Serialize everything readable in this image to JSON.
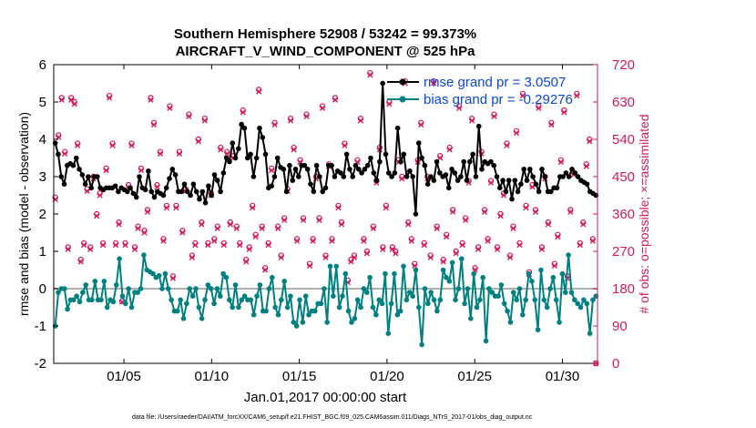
{
  "chart_data": {
    "type": "line",
    "title_line1": "Southern Hemisphere 52908 / 53242 = 99.373%",
    "title_line2": "AIRCRAFT_V_WIND_COMPONENT @ 525 hPa",
    "xlabel": "Jan.01,2017 00:00:00 start",
    "ylabel_left": "rmse and bias (model - observation)",
    "ylabel_right": "# of obs: o=possible; ×=assimilated",
    "footer": "data file: /Users/raeder/DAI/ATM_forcXX/CAM6_setup/f.e21.FHIST_BGC.f09_025.CAM6assim.011/Diags_NTrS_2017-01/obs_diag_output.nc",
    "xlim": [
      1,
      32
    ],
    "ylim_left": [
      -2,
      6
    ],
    "ylim_right": [
      0,
      720
    ],
    "x_ticks": [
      5,
      10,
      15,
      20,
      25,
      30
    ],
    "x_tick_labels": [
      "01/05",
      "01/10",
      "01/15",
      "01/20",
      "01/25",
      "01/30"
    ],
    "y_left_ticks": [
      -2,
      -1,
      0,
      1,
      2,
      3,
      4,
      5,
      6
    ],
    "y_left_tick_labels": [
      "-2",
      "-1",
      "0",
      "1",
      "2",
      "3",
      "4",
      "5",
      "6"
    ],
    "y_right_ticks": [
      0,
      90,
      180,
      270,
      360,
      450,
      540,
      630,
      720
    ],
    "y_right_tick_labels": [
      "0",
      "90",
      "180",
      "270",
      "360",
      "450",
      "540",
      "630",
      "720"
    ],
    "zero_line": 0,
    "legend": [
      {
        "label": "rmse grand pr = 3.0507",
        "color": "#000000"
      },
      {
        "label": "bias grand pr = -0.29276",
        "color": "#008080"
      }
    ],
    "colors": {
      "rmse": "#000000",
      "bias": "#008080",
      "obs": "#d6195e",
      "zero": "#b0b0b0",
      "legend_text": "#0a47d6"
    },
    "series": [
      {
        "name": "rmse",
        "values": [
          3.9,
          3.6,
          3.0,
          2.8,
          3.3,
          3.35,
          3.3,
          3.5,
          3.2,
          3.05,
          2.8,
          3.0,
          2.7,
          3.0,
          3.0,
          2.7,
          2.65,
          2.7,
          2.7,
          2.7,
          2.75,
          2.6,
          2.7,
          2.65,
          2.6,
          2.7,
          2.55,
          2.45,
          3.0,
          2.7,
          2.65,
          3.15,
          2.6,
          2.45,
          2.6,
          2.55,
          2.5,
          2.7,
          2.95,
          3.2,
          3.05,
          2.6,
          2.6,
          2.8,
          2.6,
          2.5,
          2.8,
          2.6,
          2.4,
          2.6,
          2.3,
          2.75,
          2.5,
          3.05,
          2.9,
          2.6,
          3.1,
          3.5,
          3.4,
          3.9,
          3.5,
          3.75,
          4.4,
          4.3,
          3.5,
          3.6,
          3.0,
          3.5,
          4.3,
          4.05,
          3.6,
          2.7,
          2.75,
          3.0,
          3.5,
          3.25,
          3.2,
          2.6,
          3.3,
          2.9,
          3.2,
          3.0,
          3.3,
          3.3,
          3.2,
          2.8,
          2.6,
          3.3,
          3.0,
          2.6,
          2.7,
          3.3,
          3.3,
          3.0,
          3.15,
          3.1,
          3.0,
          3.6,
          3.2,
          3.0,
          3.3,
          3.2,
          3.1,
          3.2,
          3.3,
          3.5,
          3.1,
          2.9,
          3.4,
          5.5,
          3.6,
          3.1,
          3.0,
          3.1,
          4.3,
          3.4,
          3.6,
          3.0,
          3.15,
          3.0,
          2.0,
          3.9,
          3.5,
          3.3,
          2.8,
          3.0,
          2.9,
          3.4,
          3.1,
          3.0,
          3.05,
          2.7,
          3.2,
          3.1,
          2.9,
          3.0,
          3.4,
          2.9,
          3.4,
          3.6,
          3.0,
          4.35,
          3.2,
          3.4,
          3.35,
          3.4,
          3.3,
          3.0,
          2.7,
          2.9,
          2.6,
          2.9,
          2.4,
          2.9,
          2.6,
          2.8,
          3.2,
          2.9,
          3.2,
          3.0,
          2.8,
          2.6,
          3.2,
          3.0,
          2.6,
          2.6,
          2.7,
          2.7,
          3.0,
          3.0,
          3.1,
          3.0,
          3.2,
          3.1,
          3.0,
          2.9,
          2.85,
          2.8,
          2.6,
          2.55,
          2.5
        ]
      },
      {
        "name": "bias",
        "values": [
          -1.0,
          -0.1,
          0.0,
          0.0,
          -0.55,
          -0.3,
          -0.3,
          -0.2,
          -0.35,
          -0.1,
          0.1,
          -0.3,
          -0.3,
          0.2,
          -0.3,
          -0.3,
          0.2,
          -0.5,
          -0.3,
          -0.35,
          0.1,
          0.8,
          -0.2,
          -0.4,
          0.0,
          -0.5,
          -0.1,
          -0.1,
          0.0,
          0.9,
          0.5,
          0.45,
          0.4,
          0.3,
          0.35,
          0.0,
          0.4,
          0.0,
          -0.3,
          -0.6,
          -0.6,
          -0.3,
          -0.8,
          -0.4,
          0.0,
          -0.2,
          0.0,
          -0.5,
          -0.8,
          -0.3,
          0.1,
          0.0,
          -0.4,
          0.0,
          -0.2,
          0.4,
          0.3,
          -0.3,
          -0.5,
          0.1,
          -0.5,
          -0.3,
          -0.2,
          -0.3,
          -0.3,
          -0.7,
          -0.2,
          0.1,
          -0.6,
          -0.6,
          0.0,
          0.3,
          -0.5,
          -0.7,
          -0.3,
          0.2,
          -0.5,
          -0.2,
          -0.9,
          -1.0,
          -0.3,
          -0.9,
          -0.2,
          -0.7,
          -0.6,
          -0.6,
          -0.4,
          -0.4,
          0.0,
          -0.9,
          0.6,
          -0.2,
          0.6,
          -0.5,
          -0.2,
          0.4,
          -0.6,
          -0.9,
          -0.8,
          -0.3,
          -0.5,
          0.0,
          -0.1,
          0.3,
          -0.5,
          -0.7,
          -0.3,
          -0.4,
          0.4,
          -1.2,
          -0.4,
          0.4,
          -0.7,
          -0.6,
          0.6,
          -0.3,
          -0.1,
          -0.2,
          0.5,
          -0.5,
          -1.5,
          0.0,
          -0.4,
          -0.1,
          -0.3,
          -0.6,
          -0.3,
          0.5,
          0.3,
          0.2,
          0.7,
          -0.3,
          0.0,
          0.8,
          -0.4,
          0.0,
          -0.8,
          0.4,
          -0.5,
          -0.3,
          0.3,
          -1.4,
          0.0,
          -0.1,
          -0.2,
          -0.2,
          0.1,
          -0.4,
          -0.6,
          -0.9,
          -0.1,
          -0.3,
          0.0,
          -0.7,
          -0.3,
          0.4,
          0.2,
          -0.3,
          -1.1,
          0.5,
          -0.3,
          -0.5,
          0.0,
          0.3,
          -0.3,
          -0.9,
          0.4,
          -0.1,
          0.9,
          -0.1,
          -0.3,
          -0.4,
          -0.5,
          -0.3,
          -0.4,
          -1.2,
          -0.3,
          -0.2
        ]
      },
      {
        "name": "obs_possible",
        "values": [
          400,
          550,
          640,
          510,
          280,
          640,
          630,
          530,
          250,
          290,
          420,
          280,
          450,
          360,
          410,
          290,
          470,
          645,
          530,
          290,
          340,
          150,
          290,
          430,
          530,
          280,
          330,
          470,
          320,
          370,
          640,
          580,
          430,
          510,
          300,
          380,
          620,
          210,
          380,
          510,
          320,
          420,
          600,
          260,
          290,
          540,
          340,
          590,
          290,
          410,
          300,
          330,
          520,
          290,
          510,
          340,
          500,
          330,
          290,
          610,
          250,
          280,
          380,
          310,
          660,
          330,
          230,
          290,
          470,
          580,
          330,
          260,
          350,
          420,
          590,
          520,
          300,
          490,
          350,
          600,
          240,
          300,
          450,
          350,
          620,
          260,
          480,
          300,
          640,
          380,
          340,
          530,
          200,
          250,
          260,
          490,
          590,
          300,
          270,
          700,
          330,
          440,
          520,
          280,
          380,
          630,
          280,
          270,
          490,
          450,
          680,
          340,
          300,
          240,
          490,
          580,
          290,
          450,
          260,
          680,
          330,
          500,
          250,
          310,
          520,
          370,
          270,
          620,
          290,
          350,
          440,
          590,
          230,
          280,
          510,
          370,
          300,
          440,
          600,
          280,
          360,
          410,
          530,
          260,
          330,
          560,
          290,
          650,
          380,
          220,
          430,
          370,
          620,
          280,
          450,
          340,
          580,
          240,
          310,
          490,
          610,
          210,
          370,
          460,
          650,
          290,
          340,
          480,
          540,
          300,
          0
        ]
      },
      {
        "name": "obs_assimilated",
        "values": [
          395,
          545,
          635,
          505,
          275,
          635,
          625,
          525,
          245,
          285,
          415,
          275,
          445,
          355,
          405,
          285,
          465,
          640,
          525,
          285,
          335,
          148,
          285,
          425,
          525,
          275,
          325,
          465,
          315,
          365,
          635,
          575,
          425,
          505,
          295,
          375,
          615,
          205,
          375,
          505,
          315,
          415,
          595,
          255,
          285,
          535,
          335,
          585,
          285,
          405,
          295,
          325,
          515,
          285,
          505,
          335,
          495,
          325,
          285,
          605,
          245,
          275,
          375,
          305,
          655,
          325,
          225,
          285,
          465,
          575,
          325,
          255,
          345,
          415,
          585,
          515,
          295,
          485,
          345,
          595,
          235,
          295,
          445,
          345,
          615,
          255,
          475,
          295,
          635,
          375,
          335,
          525,
          195,
          245,
          255,
          485,
          585,
          295,
          265,
          695,
          325,
          435,
          515,
          275,
          375,
          625,
          275,
          265,
          485,
          445,
          675,
          335,
          295,
          235,
          485,
          575,
          285,
          445,
          255,
          675,
          325,
          495,
          245,
          305,
          515,
          365,
          265,
          615,
          285,
          345,
          435,
          585,
          225,
          275,
          505,
          365,
          295,
          435,
          595,
          275,
          355,
          405,
          525,
          255,
          325,
          555,
          285,
          645,
          375,
          215,
          425,
          365,
          615,
          275,
          445,
          335,
          575,
          235,
          305,
          485,
          605,
          205,
          365,
          455,
          645,
          285,
          335,
          475,
          535,
          295,
          0
        ]
      }
    ]
  }
}
